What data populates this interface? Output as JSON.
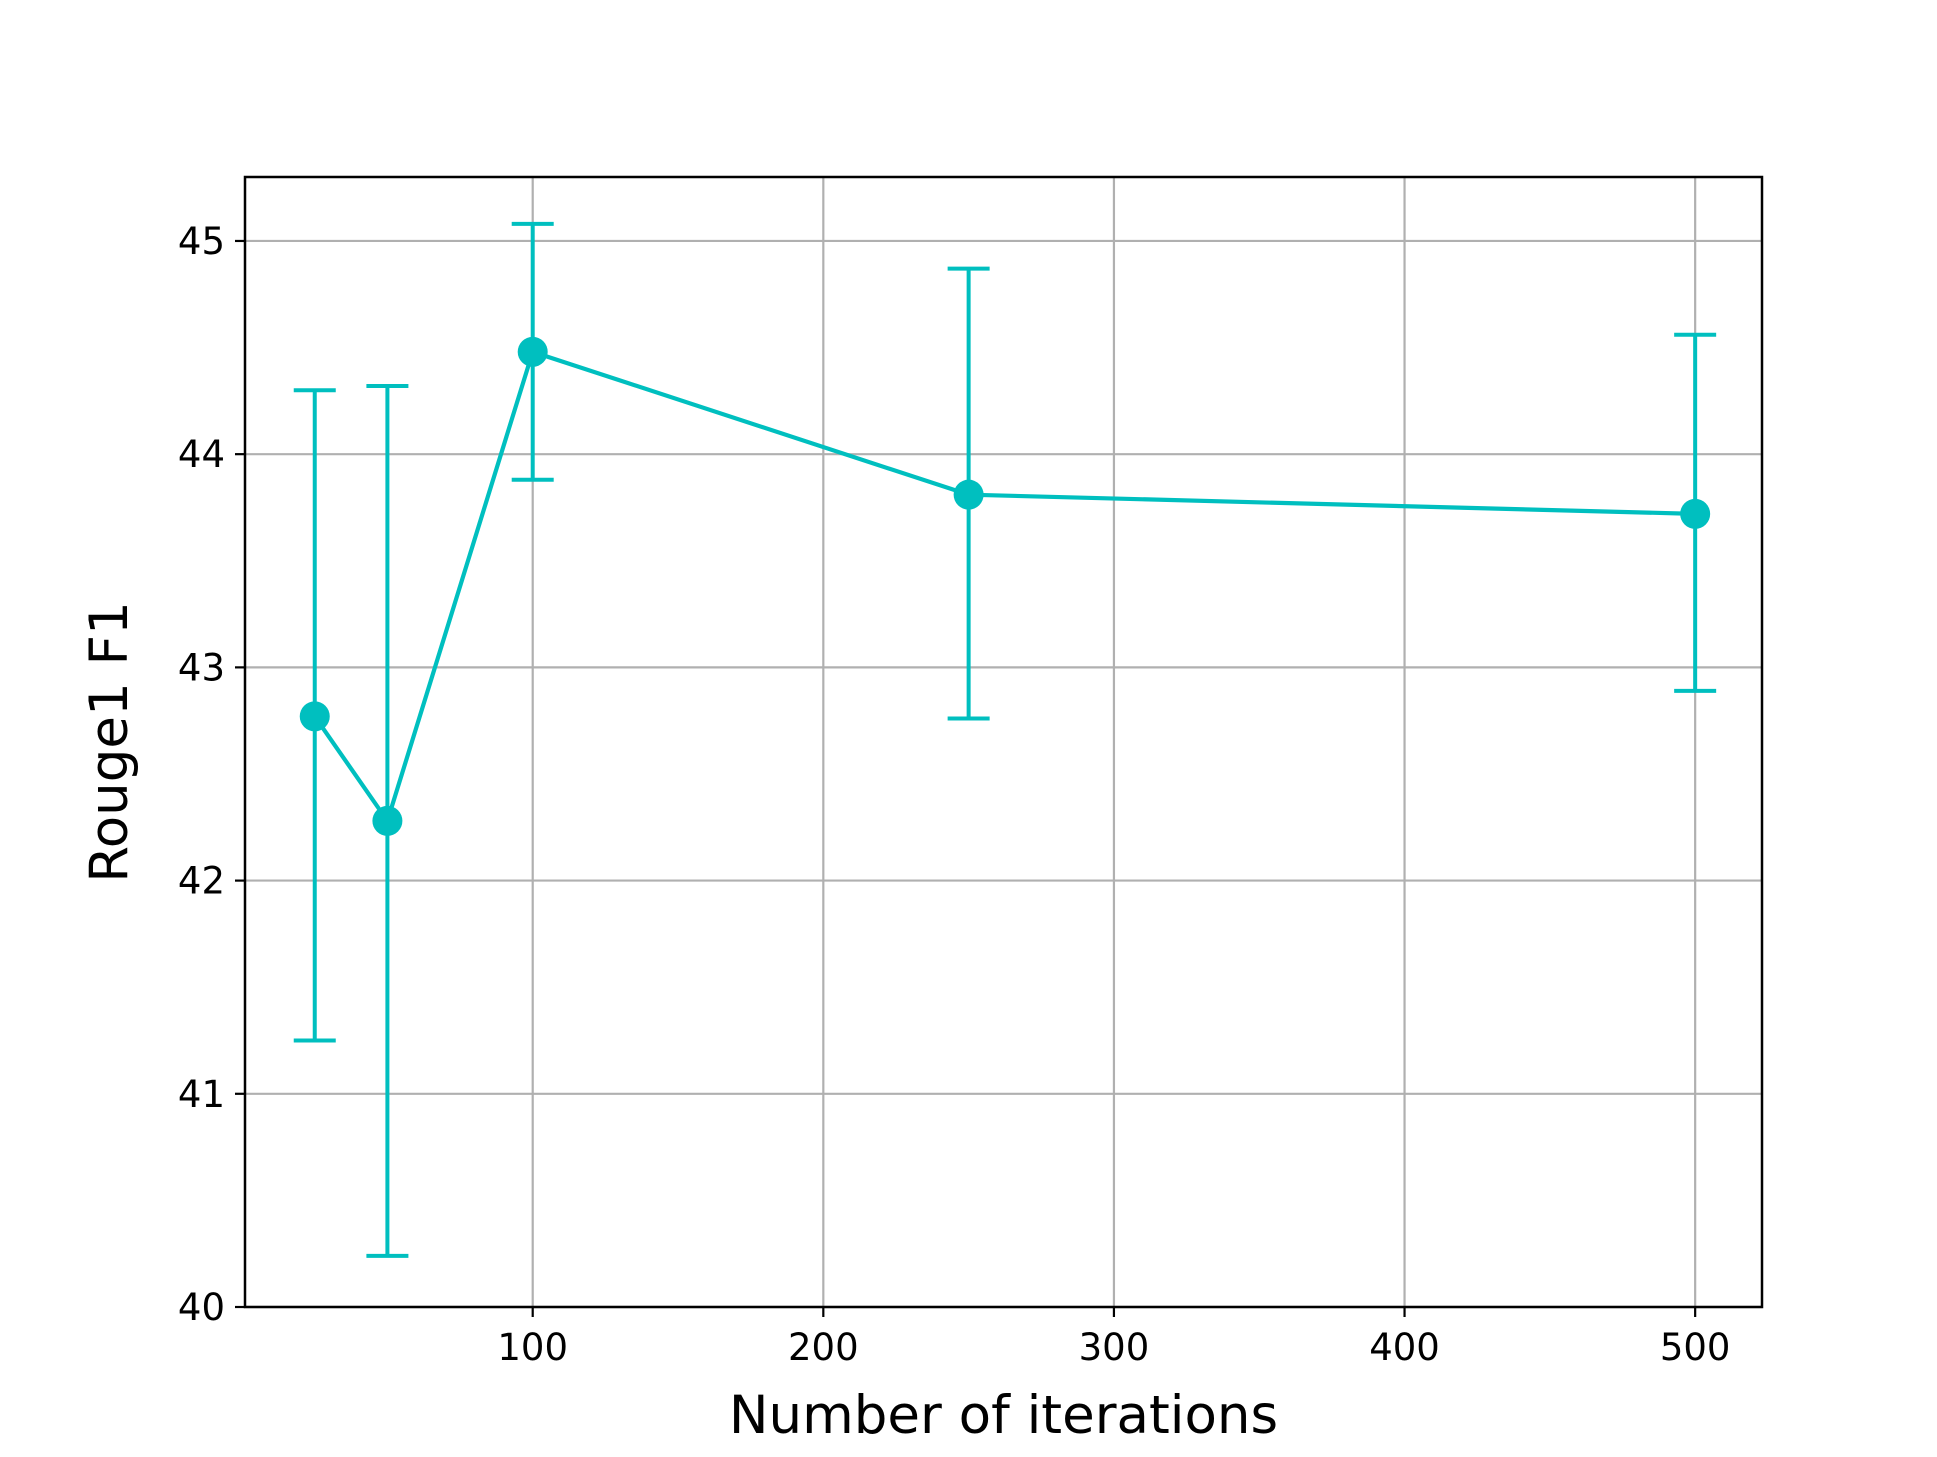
{
  "chart_data": {
    "type": "line",
    "title": "",
    "xlabel": "Number of iterations",
    "ylabel": "Rouge1 F1",
    "x": [
      25,
      50,
      100,
      250,
      500
    ],
    "series": [
      {
        "values": [
          42.77,
          42.28,
          44.48,
          43.81,
          43.72
        ],
        "error_low": [
          41.25,
          40.24,
          43.88,
          42.76,
          42.89
        ],
        "error_high": [
          44.3,
          44.32,
          45.08,
          44.87,
          44.56
        ],
        "color": "#00bfbf",
        "marker": "circle"
      }
    ],
    "xlim": [
      1,
      523
    ],
    "ylim": [
      40,
      45.3
    ],
    "xticks": [
      100,
      200,
      300,
      400,
      500
    ],
    "yticks": [
      40,
      41,
      42,
      43,
      44,
      45
    ],
    "grid": true
  }
}
